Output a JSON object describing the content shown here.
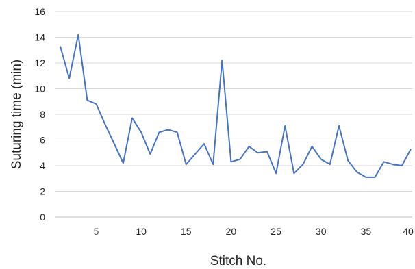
{
  "chart_data": {
    "type": "line",
    "title": "",
    "xlabel": "Stitch No.",
    "ylabel": "Suturing time (min)",
    "xlim": [
      1,
      40
    ],
    "ylim": [
      0,
      16
    ],
    "x_ticks": [
      5,
      10,
      15,
      20,
      25,
      30,
      35,
      40
    ],
    "y_ticks": [
      0,
      2,
      4,
      6,
      8,
      10,
      12,
      14,
      16
    ],
    "grid": "horizontal",
    "legend": "none",
    "series_color": "#4472C4",
    "grid_color": "#d9d9d9",
    "series": [
      {
        "x": [
          1,
          2,
          3,
          4,
          5,
          6,
          7,
          8,
          9,
          10,
          11,
          12,
          13,
          14,
          15,
          16,
          17,
          18,
          19,
          20,
          21,
          22,
          23,
          24,
          25,
          26,
          27,
          28,
          29,
          30,
          31,
          32,
          33,
          34,
          35,
          36,
          37,
          38,
          39,
          40
        ],
        "values": [
          13.3,
          10.8,
          14.2,
          9.1,
          8.8,
          7.2,
          5.7,
          4.2,
          7.7,
          6.6,
          4.9,
          6.6,
          6.8,
          6.6,
          4.1,
          4.9,
          5.7,
          4.1,
          12.2,
          4.3,
          4.5,
          5.5,
          5.0,
          5.1,
          3.4,
          7.1,
          3.4,
          4.1,
          5.5,
          4.5,
          4.1,
          7.1,
          4.4,
          3.5,
          3.1,
          3.1,
          4.3,
          4.1,
          4.0,
          5.3
        ]
      }
    ]
  }
}
